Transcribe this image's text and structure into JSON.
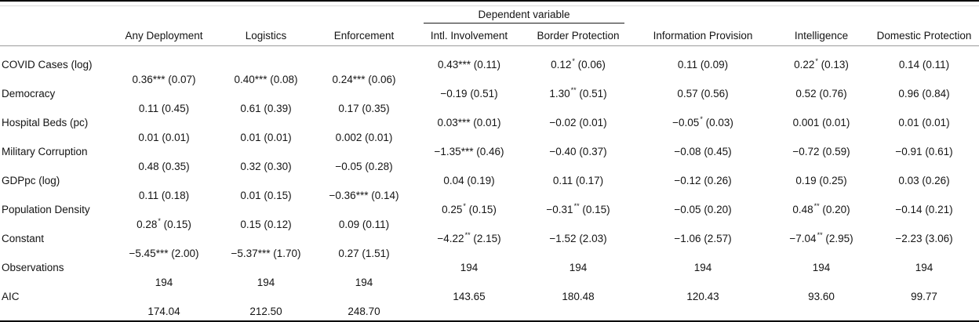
{
  "table": {
    "spanner": {
      "label": "Dependent variable"
    },
    "columns": [
      "Any Deployment",
      "Logistics",
      "Enforcement",
      "Intl. Involvement",
      "Border Protection",
      "Information Provision",
      "Intelligence",
      "Domestic Protection"
    ],
    "rows": [
      {
        "label": "COVID Cases (log)",
        "cells": [
          {
            "est": "0.36",
            "stars": "***",
            "se": "0.07"
          },
          {
            "est": "0.40",
            "stars": "***",
            "se": "0.08"
          },
          {
            "est": "0.24",
            "stars": "***",
            "se": "0.06"
          },
          {
            "est": "0.43",
            "stars": "***",
            "se": "0.11"
          },
          {
            "est": "0.12",
            "stars": "*",
            "se": "0.06"
          },
          {
            "est": "0.11",
            "stars": "",
            "se": "0.09"
          },
          {
            "est": "0.22",
            "stars": "*",
            "se": "0.13"
          },
          {
            "est": "0.14",
            "stars": "",
            "se": "0.11"
          }
        ]
      },
      {
        "label": "Democracy",
        "cells": [
          {
            "est": "0.11",
            "stars": "",
            "se": "0.45"
          },
          {
            "est": "0.61",
            "stars": "",
            "se": "0.39"
          },
          {
            "est": "0.17",
            "stars": "",
            "se": "0.35"
          },
          {
            "est": "−0.19",
            "stars": "",
            "se": "0.51"
          },
          {
            "est": "1.30",
            "stars": "**",
            "se": "0.51"
          },
          {
            "est": "0.57",
            "stars": "",
            "se": "0.56"
          },
          {
            "est": "0.52",
            "stars": "",
            "se": "0.76"
          },
          {
            "est": "0.96",
            "stars": "",
            "se": "0.84"
          }
        ]
      },
      {
        "label": "Hospital Beds (pc)",
        "cells": [
          {
            "est": "0.01",
            "stars": "",
            "se": "0.01"
          },
          {
            "est": "0.01",
            "stars": "",
            "se": "0.01"
          },
          {
            "est": "0.002",
            "stars": "",
            "se": "0.01"
          },
          {
            "est": "0.03",
            "stars": "***",
            "se": "0.01"
          },
          {
            "est": "−0.02",
            "stars": "",
            "se": "0.01"
          },
          {
            "est": "−0.05",
            "stars": "*",
            "se": "0.03"
          },
          {
            "est": "0.001",
            "stars": "",
            "se": "0.01"
          },
          {
            "est": "0.01",
            "stars": "",
            "se": "0.01"
          }
        ]
      },
      {
        "label": "Military Corruption",
        "cells": [
          {
            "est": "0.48",
            "stars": "",
            "se": "0.35"
          },
          {
            "est": "0.32",
            "stars": "",
            "se": "0.30"
          },
          {
            "est": "−0.05",
            "stars": "",
            "se": "0.28"
          },
          {
            "est": "−1.35",
            "stars": "***",
            "se": "0.46"
          },
          {
            "est": "−0.40",
            "stars": "",
            "se": "0.37"
          },
          {
            "est": "−0.08",
            "stars": "",
            "se": "0.45"
          },
          {
            "est": "−0.72",
            "stars": "",
            "se": "0.59"
          },
          {
            "est": "−0.91",
            "stars": "",
            "se": "0.61"
          }
        ]
      },
      {
        "label": "GDPpc (log)",
        "cells": [
          {
            "est": "0.11",
            "stars": "",
            "se": "0.18"
          },
          {
            "est": "0.01",
            "stars": "",
            "se": "0.15"
          },
          {
            "est": "−0.36",
            "stars": "***",
            "se": "0.14"
          },
          {
            "est": "0.04",
            "stars": "",
            "se": "0.19"
          },
          {
            "est": "0.11",
            "stars": "",
            "se": "0.17"
          },
          {
            "est": "−0.12",
            "stars": "",
            "se": "0.26"
          },
          {
            "est": "0.19",
            "stars": "",
            "se": "0.25"
          },
          {
            "est": "0.03",
            "stars": "",
            "se": "0.26"
          }
        ]
      },
      {
        "label": "Population Density",
        "cells": [
          {
            "est": "0.28",
            "stars": "*",
            "se": "0.15"
          },
          {
            "est": "0.15",
            "stars": "",
            "se": "0.12"
          },
          {
            "est": "0.09",
            "stars": "",
            "se": "0.11"
          },
          {
            "est": "0.25",
            "stars": "*",
            "se": "0.15"
          },
          {
            "est": "−0.31",
            "stars": "**",
            "se": "0.15"
          },
          {
            "est": "−0.05",
            "stars": "",
            "se": "0.20"
          },
          {
            "est": "0.48",
            "stars": "**",
            "se": "0.20"
          },
          {
            "est": "−0.14",
            "stars": "",
            "se": "0.21"
          }
        ]
      },
      {
        "label": "Constant",
        "cells": [
          {
            "est": "−5.45",
            "stars": "***",
            "se": "2.00"
          },
          {
            "est": "−5.37",
            "stars": "***",
            "se": "1.70"
          },
          {
            "est": "0.27",
            "stars": "",
            "se": "1.51"
          },
          {
            "est": "−4.22",
            "stars": "**",
            "se": "2.15"
          },
          {
            "est": "−1.52",
            "stars": "",
            "se": "2.03"
          },
          {
            "est": "−1.06",
            "stars": "",
            "se": "2.57"
          },
          {
            "est": "−7.04",
            "stars": "**",
            "se": "2.95"
          },
          {
            "est": "−2.23",
            "stars": "",
            "se": "3.06"
          }
        ]
      },
      {
        "label": "Observations",
        "cells": [
          "194",
          "194",
          "194",
          "194",
          "194",
          "194",
          "194",
          "194"
        ]
      },
      {
        "label": "AIC",
        "cells": [
          "174.04",
          "212.50",
          "248.70",
          "143.65",
          "180.48",
          "120.43",
          "93.60",
          "99.77"
        ]
      }
    ]
  }
}
